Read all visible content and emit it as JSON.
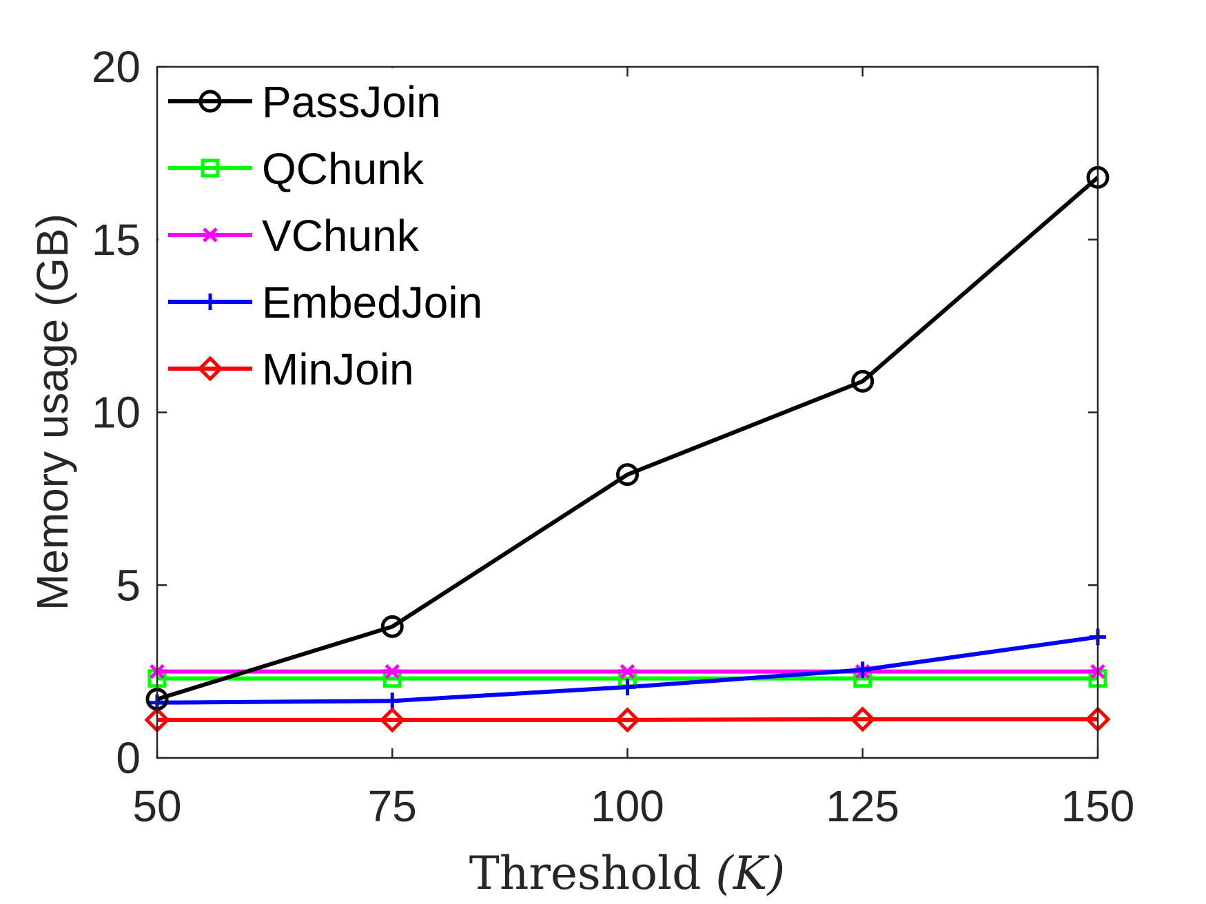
{
  "chart_data": {
    "type": "line",
    "title": "",
    "xlabel": "Threshold ",
    "xlabel_var": "(K)",
    "ylabel": "Memory usage (GB)",
    "x": [
      50,
      75,
      100,
      125,
      150
    ],
    "xlim": [
      50,
      150
    ],
    "ylim": [
      0,
      20
    ],
    "xticks": [
      50,
      75,
      100,
      125,
      150
    ],
    "yticks": [
      0,
      5,
      10,
      15,
      20
    ],
    "grid": false,
    "legend_position": "top-left",
    "series": [
      {
        "name": "PassJoin",
        "color": "#000000",
        "marker": "circle",
        "values": [
          1.7,
          3.8,
          8.2,
          10.9,
          16.8
        ]
      },
      {
        "name": "QChunk",
        "color": "#00ff00",
        "marker": "square",
        "values": [
          2.3,
          2.3,
          2.3,
          2.3,
          2.3
        ]
      },
      {
        "name": "VChunk",
        "color": "#ff00ff",
        "marker": "x",
        "values": [
          2.5,
          2.5,
          2.5,
          2.5,
          2.5
        ]
      },
      {
        "name": "EmbedJoin",
        "color": "#0000ff",
        "marker": "plus",
        "values": [
          1.6,
          1.65,
          2.05,
          2.55,
          3.5
        ]
      },
      {
        "name": "MinJoin",
        "color": "#ff0000",
        "marker": "diamond",
        "values": [
          1.1,
          1.1,
          1.1,
          1.12,
          1.12
        ]
      }
    ]
  }
}
